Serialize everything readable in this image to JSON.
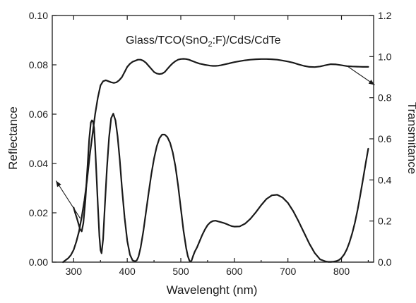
{
  "chart_data": {
    "type": "line",
    "title": "",
    "annotation": {
      "prefix": "Glass/TCO(SnO",
      "subscript": "2",
      "suffix": ":F)/CdS/CdTe"
    },
    "xlabel": "Wavelenght (nm)",
    "ylabel_left": "Reflectance",
    "ylabel_right": "Transmitance",
    "xlim": [
      260,
      860
    ],
    "ylim_left": [
      0,
      0.1
    ],
    "ylim_right": [
      0,
      1.2
    ],
    "x_ticks": [
      300,
      400,
      500,
      600,
      700,
      800
    ],
    "x_tick_labels": [
      "300",
      "400",
      "500",
      "600",
      "700",
      "800"
    ],
    "y_left_ticks": [
      0,
      0.02,
      0.04,
      0.06,
      0.08,
      0.1
    ],
    "y_left_tick_labels": [
      "0.00",
      "0.02",
      "0.04",
      "0.06",
      "0.08",
      "0.10"
    ],
    "y_right_ticks": [
      0,
      0.2,
      0.4,
      0.6,
      0.8,
      1.0,
      1.2
    ],
    "y_right_tick_labels": [
      "0.0",
      "0.2",
      "0.4",
      "0.6",
      "0.8",
      "1.0",
      "1.2"
    ],
    "grid": false,
    "series": [
      {
        "axis": "left",
        "x": [
          300,
          303,
          306,
          309,
          312,
          315,
          318,
          322,
          326,
          329,
          332,
          334,
          336,
          338,
          340,
          342,
          345,
          348,
          350,
          352,
          355,
          358,
          362,
          366,
          370,
          374,
          378,
          382,
          386,
          390,
          395,
          400,
          405,
          410,
          415,
          418,
          421,
          425,
          430,
          435,
          440,
          445,
          450,
          455,
          460,
          465,
          470,
          475,
          480,
          485,
          490,
          495,
          500,
          505,
          510,
          513,
          516,
          518,
          520,
          523,
          526,
          530,
          535,
          540,
          545,
          550,
          555,
          560,
          565,
          570,
          575,
          580,
          585,
          590,
          595,
          600,
          610,
          620,
          630,
          640,
          650,
          660,
          670,
          680,
          690,
          700,
          710,
          720,
          730,
          740,
          750,
          760,
          770,
          775,
          780,
          785,
          790,
          795,
          800,
          805,
          810,
          815,
          820,
          825,
          830,
          835,
          840,
          845,
          850
        ],
        "y": [
          0.0221,
          0.0198,
          0.0178,
          0.0155,
          0.0133,
          0.0125,
          0.0158,
          0.0254,
          0.0392,
          0.0498,
          0.0566,
          0.0575,
          0.0571,
          0.0545,
          0.047,
          0.0378,
          0.0234,
          0.0106,
          0.0049,
          0.0036,
          0.0094,
          0.022,
          0.0381,
          0.0505,
          0.0584,
          0.0602,
          0.0575,
          0.051,
          0.0414,
          0.0303,
          0.0181,
          0.0086,
          0.003,
          0.0007,
          0.0003,
          0.0008,
          0.0022,
          0.0059,
          0.0124,
          0.0203,
          0.0282,
          0.0357,
          0.042,
          0.0469,
          0.0502,
          0.0517,
          0.0517,
          0.0507,
          0.0484,
          0.0445,
          0.0388,
          0.031,
          0.0219,
          0.0128,
          0.0057,
          0.0025,
          0.0007,
          0.0002,
          0.0006,
          0.0025,
          0.0042,
          0.0059,
          0.0084,
          0.011,
          0.0132,
          0.015,
          0.0161,
          0.0167,
          0.0168,
          0.0165,
          0.0162,
          0.0159,
          0.0155,
          0.015,
          0.0146,
          0.0144,
          0.0145,
          0.0156,
          0.0176,
          0.0202,
          0.0231,
          0.0256,
          0.0271,
          0.0273,
          0.0262,
          0.024,
          0.0206,
          0.0165,
          0.012,
          0.0075,
          0.0037,
          0.0011,
          0.0003,
          0.0001,
          0.0001,
          0.0002,
          0.0004,
          0.0008,
          0.0017,
          0.0031,
          0.0052,
          0.0081,
          0.0117,
          0.016,
          0.0212,
          0.027,
          0.0333,
          0.0398,
          0.046
        ]
      },
      {
        "axis": "right",
        "x": [
          280,
          285,
          290,
          295,
          300,
          305,
          310,
          315,
          320,
          325,
          330,
          335,
          340,
          345,
          350,
          355,
          360,
          365,
          370,
          375,
          380,
          385,
          390,
          395,
          400,
          405,
          410,
          415,
          420,
          425,
          430,
          435,
          440,
          445,
          450,
          455,
          460,
          465,
          470,
          475,
          480,
          485,
          490,
          495,
          500,
          505,
          510,
          515,
          520,
          525,
          530,
          535,
          540,
          545,
          550,
          555,
          560,
          565,
          570,
          575,
          580,
          585,
          590,
          595,
          600,
          610,
          620,
          630,
          640,
          650,
          660,
          670,
          680,
          690,
          700,
          710,
          720,
          730,
          740,
          750,
          760,
          770,
          780,
          790,
          800,
          810,
          820,
          830,
          840,
          850
        ],
        "y": [
          0.0,
          0.01,
          0.02,
          0.035,
          0.06,
          0.1,
          0.15,
          0.22,
          0.3,
          0.4,
          0.52,
          0.62,
          0.72,
          0.8,
          0.86,
          0.88,
          0.885,
          0.88,
          0.875,
          0.872,
          0.875,
          0.885,
          0.9,
          0.925,
          0.95,
          0.965,
          0.975,
          0.98,
          0.985,
          0.985,
          0.98,
          0.97,
          0.955,
          0.94,
          0.925,
          0.918,
          0.915,
          0.917,
          0.925,
          0.94,
          0.955,
          0.968,
          0.978,
          0.985,
          0.988,
          0.989,
          0.988,
          0.985,
          0.98,
          0.975,
          0.97,
          0.966,
          0.963,
          0.96,
          0.958,
          0.956,
          0.955,
          0.955,
          0.956,
          0.958,
          0.961,
          0.964,
          0.967,
          0.97,
          0.973,
          0.978,
          0.982,
          0.985,
          0.987,
          0.988,
          0.988,
          0.987,
          0.985,
          0.981,
          0.976,
          0.97,
          0.962,
          0.955,
          0.95,
          0.949,
          0.952,
          0.958,
          0.963,
          0.962,
          0.958,
          0.954,
          0.952,
          0.951,
          0.95,
          0.95
        ]
      }
    ],
    "arrows": [
      {
        "axis": "left",
        "from": [
          312,
          0.0178
        ],
        "to": [
          267,
          0.033
        ],
        "points_to": "left axis"
      },
      {
        "axis": "right",
        "from": [
          810,
          0.955
        ],
        "to": [
          862,
          0.862
        ],
        "points_to": "right axis"
      }
    ]
  }
}
